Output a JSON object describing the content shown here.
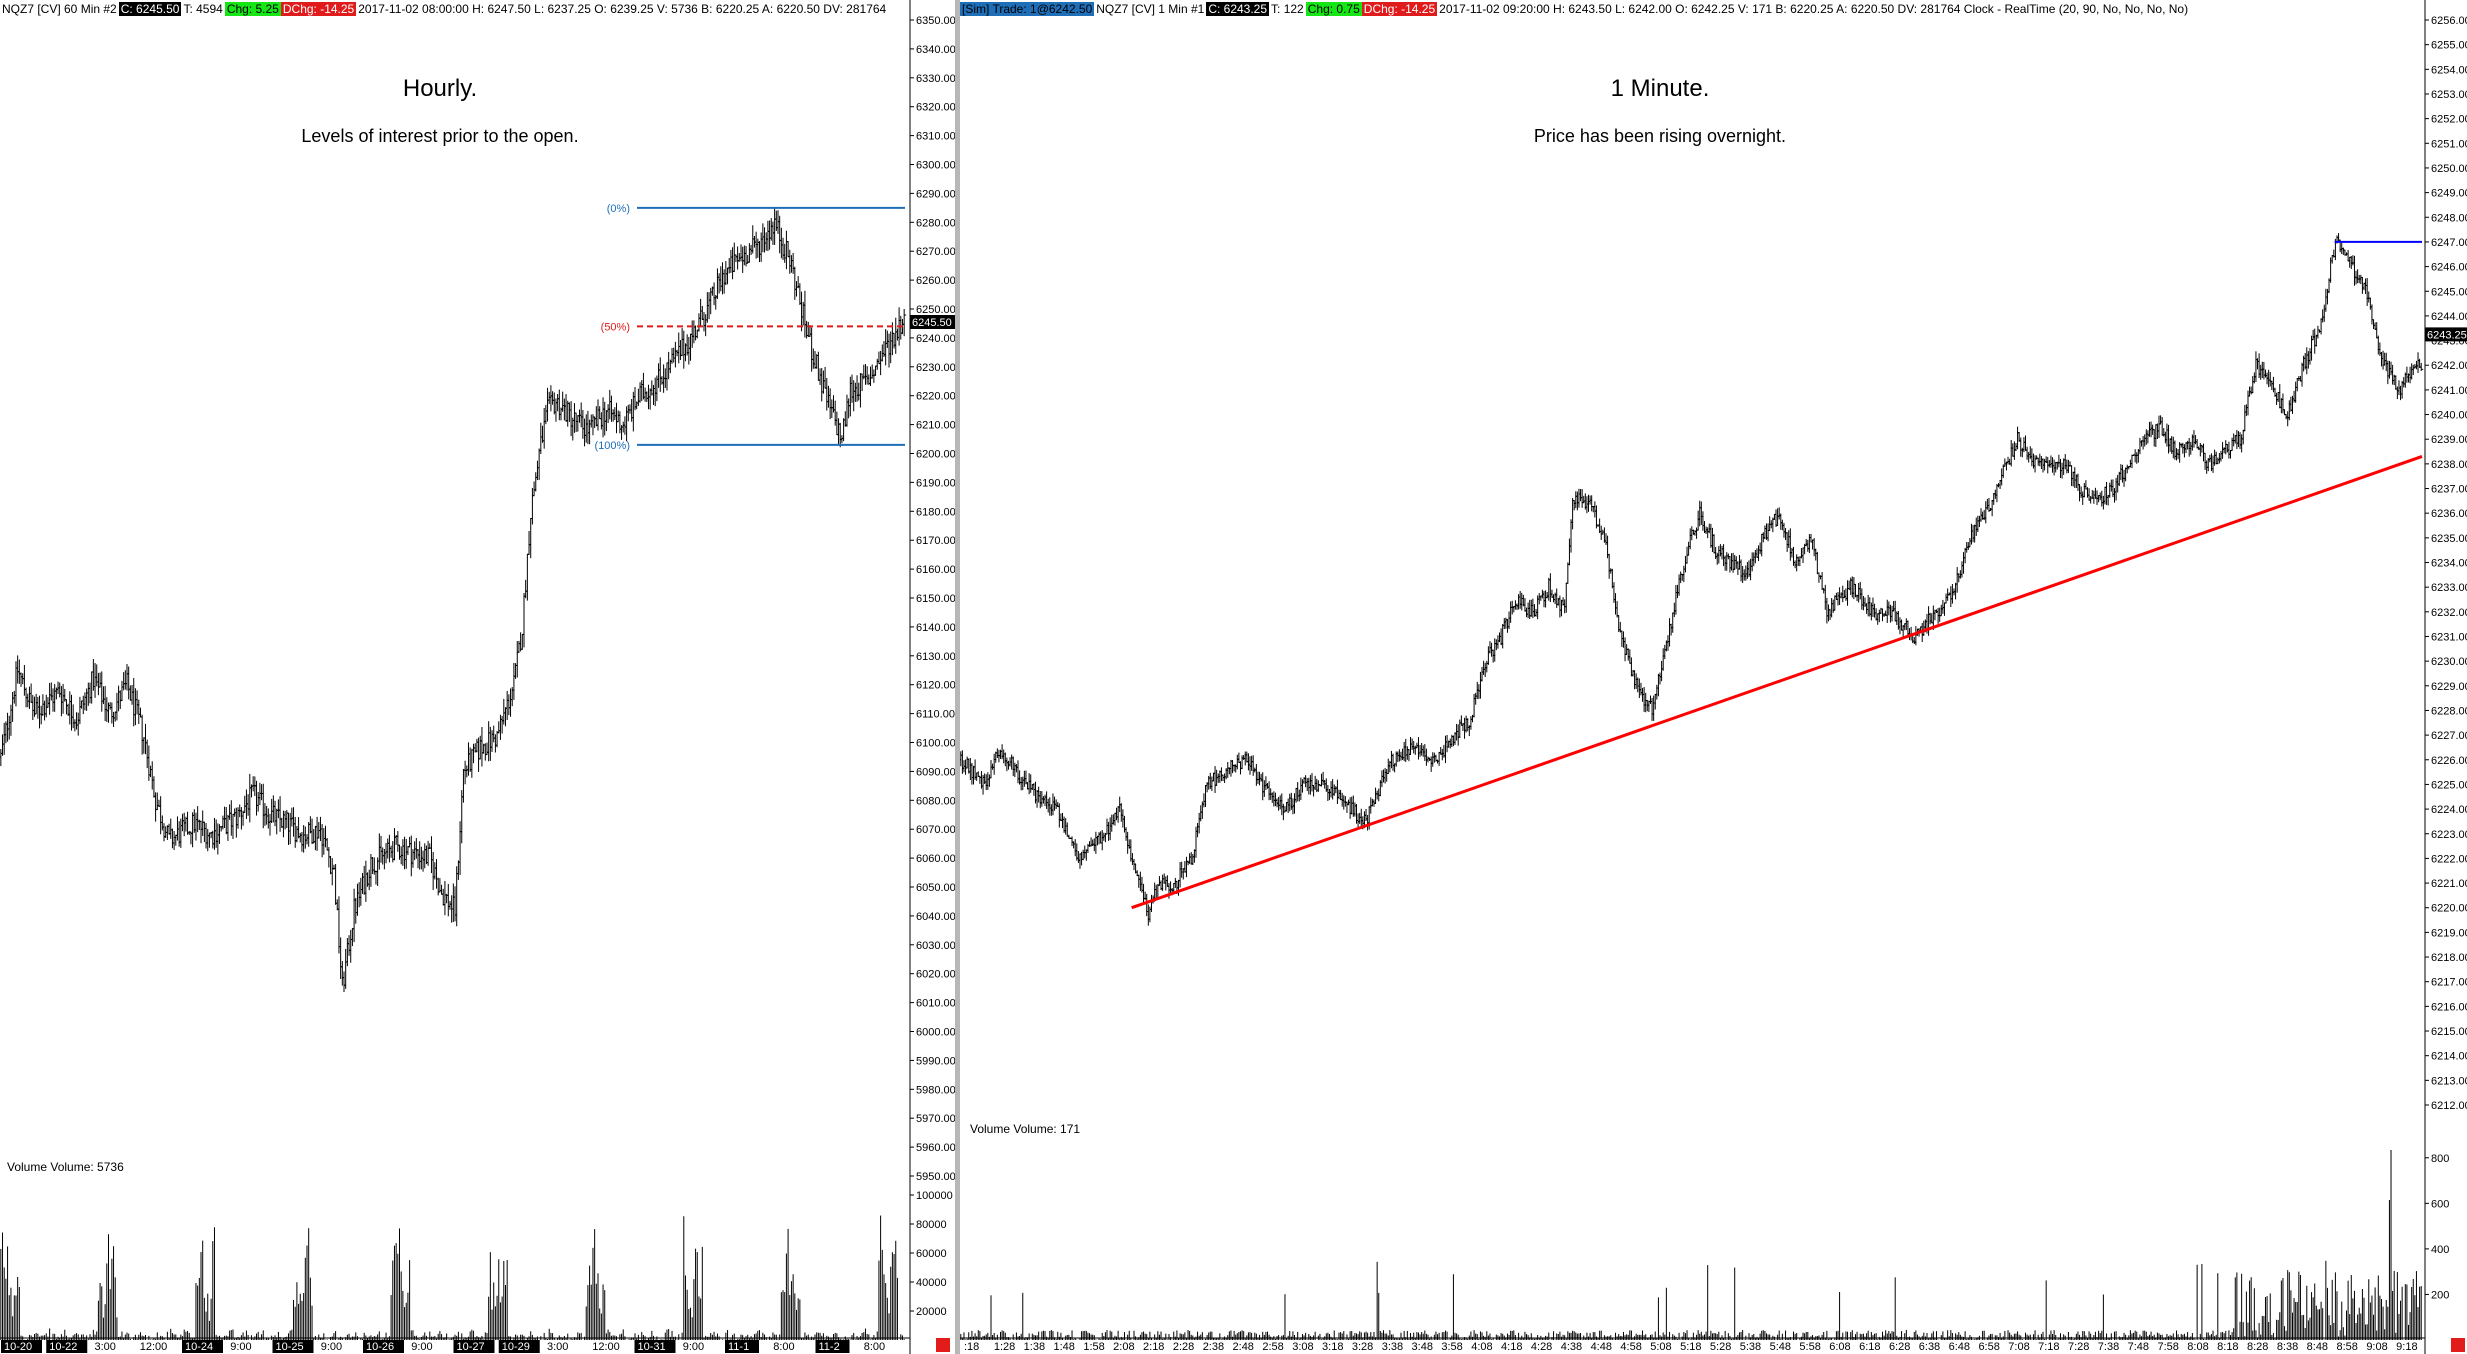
{
  "left": {
    "header": {
      "symbol": "NQZ7 [CV]  60 Min   #2",
      "close": "C: 6245.50",
      "ticks": "T: 4594",
      "chg": "Chg: 5.25",
      "dchg": "DChg: -14.25",
      "bar_info": "2017-11-02 08:00:00  H: 6247.50  L: 6237.25  O: 6239.25  V: 5736  B: 6220.25  A: 6220.50  DV: 281764"
    },
    "title": "Hourly.",
    "subtitle": "Levels of interest prior to the open.",
    "volume_label": "Volume  Volume: 5736",
    "fib_labels": [
      "(0%)",
      "(50%)",
      "(100%)"
    ],
    "last_price": "6245.50",
    "time_labels": [
      {
        "t": "10-20",
        "hl": true
      },
      {
        "t": "10-22",
        "hl": true
      },
      {
        "t": "3:00",
        "hl": false
      },
      {
        "t": "12:00",
        "hl": false
      },
      {
        "t": "10-24",
        "hl": true
      },
      {
        "t": "9:00",
        "hl": false
      },
      {
        "t": "10-25",
        "hl": true
      },
      {
        "t": "9:00",
        "hl": false
      },
      {
        "t": "10-26",
        "hl": true
      },
      {
        "t": "9:00",
        "hl": false
      },
      {
        "t": "10-27",
        "hl": true
      },
      {
        "t": "10-29",
        "hl": true
      },
      {
        "t": "3:00",
        "hl": false
      },
      {
        "t": "12:00",
        "hl": false
      },
      {
        "t": "10-31",
        "hl": true
      },
      {
        "t": "9:00",
        "hl": false
      },
      {
        "t": "11-1",
        "hl": true
      },
      {
        "t": "8:00",
        "hl": false
      },
      {
        "t": "11-2",
        "hl": true
      },
      {
        "t": "8:00",
        "hl": false
      }
    ],
    "volume_axis": [
      "100000",
      "80000",
      "60000",
      "40000",
      "20000"
    ]
  },
  "right": {
    "header": {
      "sim": "[Sim]  Trade: 1@6242.50",
      "symbol": "NQZ7 [CV]  1 Min   #1",
      "close": "C: 6243.25",
      "ticks": "T: 122",
      "chg": "Chg: 0.75",
      "dchg": "DChg: -14.25",
      "bar_info": "2017-11-02 09:20:00  H: 6243.50  L: 6242.00  O: 6242.25  V: 171  B: 6220.25  A: 6220.50  DV: 281764  Clock - RealTime  (20, 90, No, No, No, No)"
    },
    "title": "1 Minute.",
    "subtitle": "Price has been rising overnight.",
    "volume_label": "Volume  Volume: 171",
    "last_price": "6243.25",
    "time_labels": [
      ":18",
      "1:28",
      "1:38",
      "1:48",
      "1:58",
      "2:08",
      "2:18",
      "2:28",
      "2:38",
      "2:48",
      "2:58",
      "3:08",
      "3:18",
      "3:28",
      "3:38",
      "3:48",
      "3:58",
      "4:08",
      "4:18",
      "4:28",
      "4:38",
      "4:48",
      "4:58",
      "5:08",
      "5:18",
      "5:28",
      "5:38",
      "5:48",
      "5:58",
      "6:08",
      "6:18",
      "6:28",
      "6:38",
      "6:48",
      "6:58",
      "7:08",
      "7:18",
      "7:28",
      "7:38",
      "7:48",
      "7:58",
      "8:08",
      "8:18",
      "8:28",
      "8:38",
      "8:48",
      "8:58",
      "9:08",
      "9:18"
    ],
    "volume_axis": [
      "800",
      "600",
      "400",
      "200"
    ]
  },
  "chart_data": [
    {
      "type": "bar",
      "title": "Hourly.",
      "subtitle": "Levels of interest prior to the open.",
      "price_axis": {
        "min": 5950,
        "max": 6350,
        "step": 10
      },
      "volume_axis": {
        "min": 0,
        "max": 100000,
        "ticks": [
          20000,
          40000,
          60000,
          80000,
          100000
        ]
      },
      "price_path": [
        [
          0,
          6095
        ],
        [
          10,
          6125
        ],
        [
          20,
          6110
        ],
        [
          35,
          6118
        ],
        [
          45,
          6108
        ],
        [
          55,
          6122
        ],
        [
          65,
          6110
        ],
        [
          75,
          6120
        ],
        [
          85,
          6102
        ],
        [
          92,
          6080
        ],
        [
          100,
          6066
        ],
        [
          115,
          6072
        ],
        [
          125,
          6068
        ],
        [
          140,
          6074
        ],
        [
          150,
          6082
        ],
        [
          160,
          6075
        ],
        [
          170,
          6072
        ],
        [
          180,
          6068
        ],
        [
          190,
          6070
        ],
        [
          198,
          6055
        ],
        [
          203,
          6015
        ],
        [
          210,
          6042
        ],
        [
          220,
          6058
        ],
        [
          235,
          6064
        ],
        [
          245,
          6062
        ],
        [
          255,
          6060
        ],
        [
          262,
          6048
        ],
        [
          270,
          6042
        ],
        [
          275,
          6090
        ],
        [
          285,
          6098
        ],
        [
          295,
          6102
        ],
        [
          305,
          6120
        ],
        [
          310,
          6140
        ],
        [
          315,
          6180
        ],
        [
          320,
          6200
        ],
        [
          325,
          6215
        ],
        [
          330,
          6218
        ],
        [
          340,
          6212
        ],
        [
          350,
          6208
        ],
        [
          360,
          6215
        ],
        [
          370,
          6210
        ],
        [
          380,
          6220
        ],
        [
          390,
          6225
        ],
        [
          400,
          6232
        ],
        [
          410,
          6240
        ],
        [
          420,
          6250
        ],
        [
          430,
          6262
        ],
        [
          440,
          6268
        ],
        [
          450,
          6272
        ],
        [
          460,
          6280
        ],
        [
          470,
          6265
        ],
        [
          480,
          6240
        ],
        [
          490,
          6220
        ],
        [
          500,
          6205
        ],
        [
          505,
          6222
        ],
        [
          515,
          6225
        ],
        [
          525,
          6235
        ],
        [
          535,
          6245
        ]
      ],
      "hourly_bar_count": 538,
      "fib_levels": [
        {
          "label": "(0%)",
          "price": 6285
        },
        {
          "label": "(50%)",
          "price": 6244
        },
        {
          "label": "(100%)",
          "price": 6203
        }
      ],
      "last_price": 6245.5
    },
    {
      "type": "bar",
      "title": "1 Minute.",
      "subtitle": "Price has been rising overnight.",
      "price_axis": {
        "min": 6212,
        "max": 6256,
        "step": 1
      },
      "volume_axis": {
        "min": 0,
        "max": 900,
        "ticks": [
          200,
          400,
          600,
          800
        ]
      },
      "price_path": [
        [
          0,
          6226
        ],
        [
          15,
          6225
        ],
        [
          25,
          6226.5
        ],
        [
          40,
          6225
        ],
        [
          60,
          6224
        ],
        [
          75,
          6222
        ],
        [
          90,
          6223
        ],
        [
          100,
          6224
        ],
        [
          108,
          6222
        ],
        [
          115,
          6220.5
        ],
        [
          118,
          6219.8
        ],
        [
          125,
          6221
        ],
        [
          135,
          6221
        ],
        [
          145,
          6222
        ],
        [
          155,
          6225
        ],
        [
          165,
          6225.5
        ],
        [
          180,
          6226
        ],
        [
          190,
          6225
        ],
        [
          205,
          6224
        ],
        [
          215,
          6225
        ],
        [
          230,
          6225
        ],
        [
          245,
          6224
        ],
        [
          255,
          6223.5
        ],
        [
          270,
          6226
        ],
        [
          285,
          6226.5
        ],
        [
          300,
          6226
        ],
        [
          310,
          6227
        ],
        [
          320,
          6227.5
        ],
        [
          330,
          6230
        ],
        [
          340,
          6231
        ],
        [
          350,
          6232.5
        ],
        [
          360,
          6232
        ],
        [
          370,
          6233
        ],
        [
          380,
          6232
        ],
        [
          385,
          6236.5
        ],
        [
          395,
          6236.5
        ],
        [
          405,
          6235
        ],
        [
          415,
          6231
        ],
        [
          425,
          6229
        ],
        [
          435,
          6228
        ],
        [
          445,
          6231
        ],
        [
          455,
          6234
        ],
        [
          465,
          6236
        ],
        [
          475,
          6234.5
        ],
        [
          485,
          6234
        ],
        [
          495,
          6233.5
        ],
        [
          505,
          6235
        ],
        [
          515,
          6236
        ],
        [
          525,
          6234
        ],
        [
          535,
          6235
        ],
        [
          545,
          6232
        ],
        [
          560,
          6233
        ],
        [
          575,
          6232
        ],
        [
          585,
          6232
        ],
        [
          600,
          6231
        ],
        [
          615,
          6232
        ],
        [
          625,
          6233
        ],
        [
          635,
          6235
        ],
        [
          645,
          6236
        ],
        [
          655,
          6237.5
        ],
        [
          665,
          6239
        ],
        [
          675,
          6238
        ],
        [
          685,
          6238
        ],
        [
          695,
          6238
        ],
        [
          705,
          6237
        ],
        [
          715,
          6236.5
        ],
        [
          725,
          6237
        ],
        [
          735,
          6238
        ],
        [
          745,
          6239
        ],
        [
          755,
          6239.5
        ],
        [
          765,
          6238.5
        ],
        [
          775,
          6239
        ],
        [
          785,
          6238
        ],
        [
          795,
          6238.5
        ],
        [
          805,
          6239
        ],
        [
          815,
          6242
        ],
        [
          825,
          6241
        ],
        [
          835,
          6240
        ],
        [
          845,
          6242
        ],
        [
          855,
          6243.5
        ],
        [
          865,
          6247
        ],
        [
          875,
          6246
        ],
        [
          885,
          6245
        ],
        [
          895,
          6242
        ],
        [
          905,
          6241
        ],
        [
          915,
          6242
        ]
      ],
      "minute_bar_count": 920,
      "horizontal_level": 6247,
      "trendline": [
        [
          108,
          6220
        ],
        [
          920,
          6238.3
        ]
      ],
      "last_price": 6243.25
    }
  ]
}
